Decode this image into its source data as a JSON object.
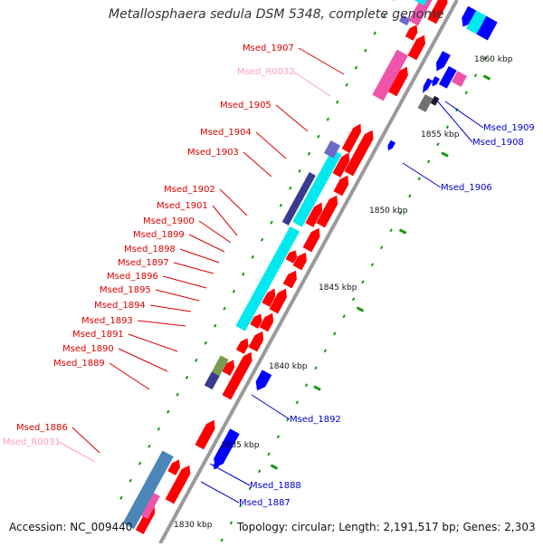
{
  "title": "Metallosphaera sedula DSM 5348, complete genome",
  "accession": "Accession: NC_009440",
  "topology": "Topology: circular; Length: 2,191,517 bp; Genes: 2,303",
  "colors": {
    "forward_gene": "#ff0000",
    "reverse_gene": "#0000ff",
    "rna": "#ee55aa",
    "rna_label": "#ff9ec6",
    "fwd_label": "#dd0000",
    "rev_label": "#0000cc",
    "cog_cyan": "#00e8f0",
    "cog_navy": "#3a3a90",
    "cog_steel": "#4a86b8",
    "cog_slate": "#6a6ac8",
    "backbone": "#9a9a9a",
    "tick": "#119911"
  },
  "kbp_ticks": [
    "1830 kbp",
    "1835 kbp",
    "1840 kbp",
    "1845 kbp",
    "1850 kbp",
    "1855 kbp",
    "1860 kbp"
  ],
  "labels_left": [
    {
      "id": "Msed_1907",
      "text": "Msed_1907",
      "kind": "fwd"
    },
    {
      "id": "Msed_R0032",
      "text": "Msed_R0032",
      "kind": "rna"
    },
    {
      "id": "Msed_1905",
      "text": "Msed_1905",
      "kind": "fwd"
    },
    {
      "id": "Msed_1904",
      "text": "Msed_1904",
      "kind": "fwd"
    },
    {
      "id": "Msed_1903",
      "text": "Msed_1903",
      "kind": "fwd"
    },
    {
      "id": "Msed_1902",
      "text": "Msed_1902",
      "kind": "fwd"
    },
    {
      "id": "Msed_1901",
      "text": "Msed_1901",
      "kind": "fwd"
    },
    {
      "id": "Msed_1900",
      "text": "Msed_1900",
      "kind": "fwd"
    },
    {
      "id": "Msed_1899",
      "text": "Msed_1899",
      "kind": "fwd"
    },
    {
      "id": "Msed_1898",
      "text": "Msed_1898",
      "kind": "fwd"
    },
    {
      "id": "Msed_1897",
      "text": "Msed_1897",
      "kind": "fwd"
    },
    {
      "id": "Msed_1896",
      "text": "Msed_1896",
      "kind": "fwd"
    },
    {
      "id": "Msed_1895",
      "text": "Msed_1895",
      "kind": "fwd"
    },
    {
      "id": "Msed_1894",
      "text": "Msed_1894",
      "kind": "fwd"
    },
    {
      "id": "Msed_1893",
      "text": "Msed_1893",
      "kind": "fwd"
    },
    {
      "id": "Msed_1891",
      "text": "Msed_1891",
      "kind": "fwd"
    },
    {
      "id": "Msed_1890",
      "text": "Msed_1890",
      "kind": "fwd"
    },
    {
      "id": "Msed_1889",
      "text": "Msed_1889",
      "kind": "fwd"
    },
    {
      "id": "Msed_1886",
      "text": "Msed_1886",
      "kind": "fwd"
    },
    {
      "id": "Msed_R0031",
      "text": "Msed_R0031",
      "kind": "rna"
    }
  ],
  "labels_right": [
    {
      "id": "Msed_1909",
      "text": "Msed_1909",
      "kind": "rev"
    },
    {
      "id": "Msed_1908",
      "text": "Msed_1908",
      "kind": "rev"
    },
    {
      "id": "Msed_1906",
      "text": "Msed_1906",
      "kind": "rev"
    },
    {
      "id": "Msed_1892",
      "text": "Msed_1892",
      "kind": "rev"
    },
    {
      "id": "Msed_1888",
      "text": "Msed_1888",
      "kind": "rev"
    },
    {
      "id": "Msed_1887",
      "text": "Msed_1887",
      "kind": "rev"
    }
  ]
}
